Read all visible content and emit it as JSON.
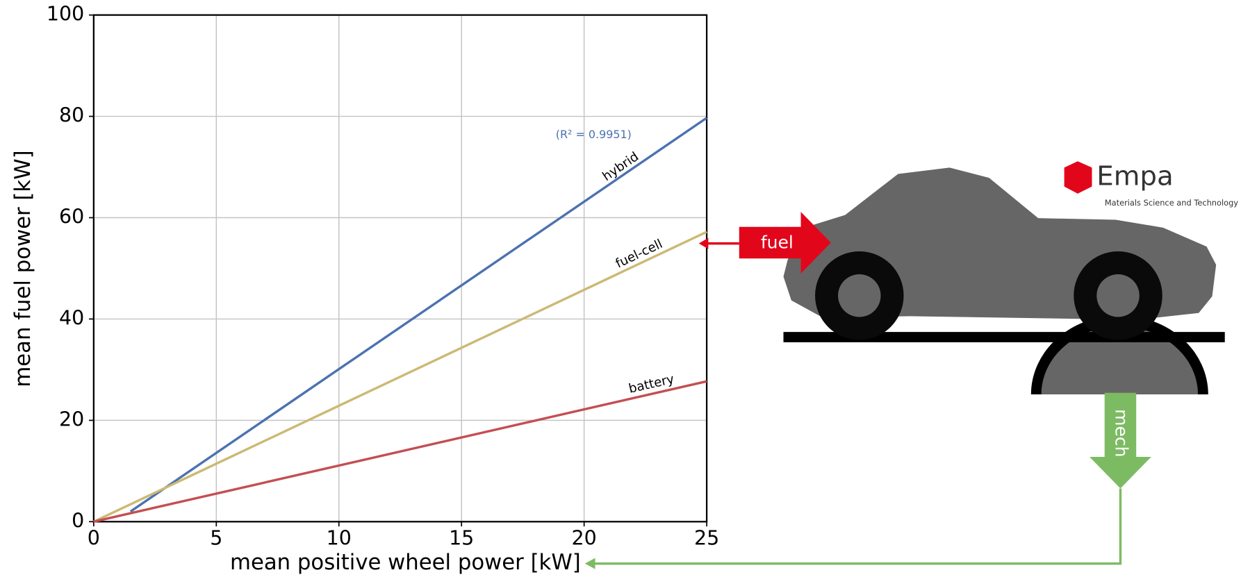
{
  "chart_data": {
    "type": "line",
    "xlabel": "mean positive wheel power [kW]",
    "ylabel": "mean fuel power [kW]",
    "xlim": [
      0,
      25
    ],
    "ylim": [
      0,
      100
    ],
    "xticks": [
      0,
      5,
      10,
      15,
      20,
      25
    ],
    "yticks": [
      0,
      20,
      40,
      60,
      80,
      100
    ],
    "grid": true,
    "annotation": "(R² = 0.9951)",
    "series": [
      {
        "name": "hybrid",
        "color": "#4c72b0",
        "x": [
          1.5,
          25
        ],
        "values": [
          2,
          79.7
        ]
      },
      {
        "name": "fuel-cell",
        "color": "#ccb974",
        "x": [
          0,
          25
        ],
        "values": [
          0,
          57.2
        ]
      },
      {
        "name": "battery",
        "color": "#c44e52",
        "x": [
          0,
          25
        ],
        "values": [
          0,
          27.7
        ]
      }
    ]
  },
  "diagram": {
    "fuel_label": "fuel",
    "mech_label": "mech",
    "logo": "Empa",
    "logo_subtitle": "Materials Science and Technology"
  }
}
